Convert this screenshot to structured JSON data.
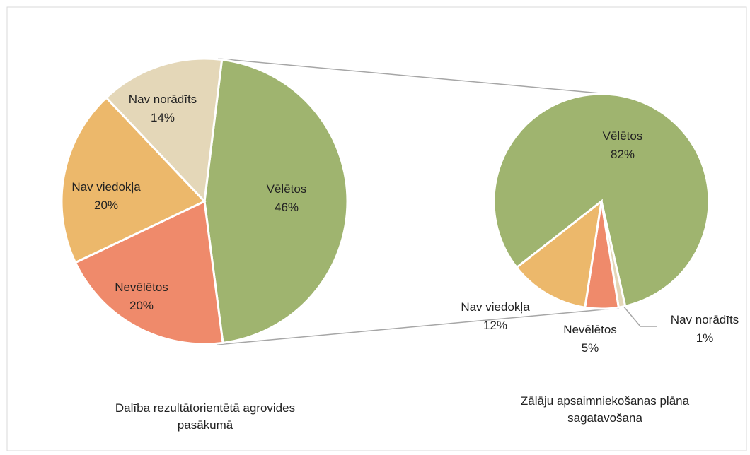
{
  "chart_data": [
    {
      "type": "pie",
      "title": "Dalība rezultātorientētā agrovides pasākumā",
      "categories": [
        "Vēlētos",
        "Nevēlētos",
        "Nav viedokļa",
        "Nav norādīts"
      ],
      "values": [
        46,
        20,
        20,
        14
      ],
      "value_labels": [
        "46%",
        "20%",
        "20%",
        "14%"
      ],
      "colors": [
        "#9fb46f",
        "#ef8a6b",
        "#ecb86b",
        "#e4d7b8"
      ]
    },
    {
      "type": "pie",
      "title": "Zālāju apsaimniekošanas plāna sagatavošana",
      "categories": [
        "Vēlētos",
        "Nav norādīts",
        "Nevēlētos",
        "Nav viedokļa"
      ],
      "values": [
        82,
        1,
        5,
        12
      ],
      "value_labels": [
        "82%",
        "1%",
        "5%",
        "12%"
      ],
      "colors": [
        "#9fb46f",
        "#e4d7b8",
        "#ef8a6b",
        "#ecb86b"
      ]
    }
  ]
}
